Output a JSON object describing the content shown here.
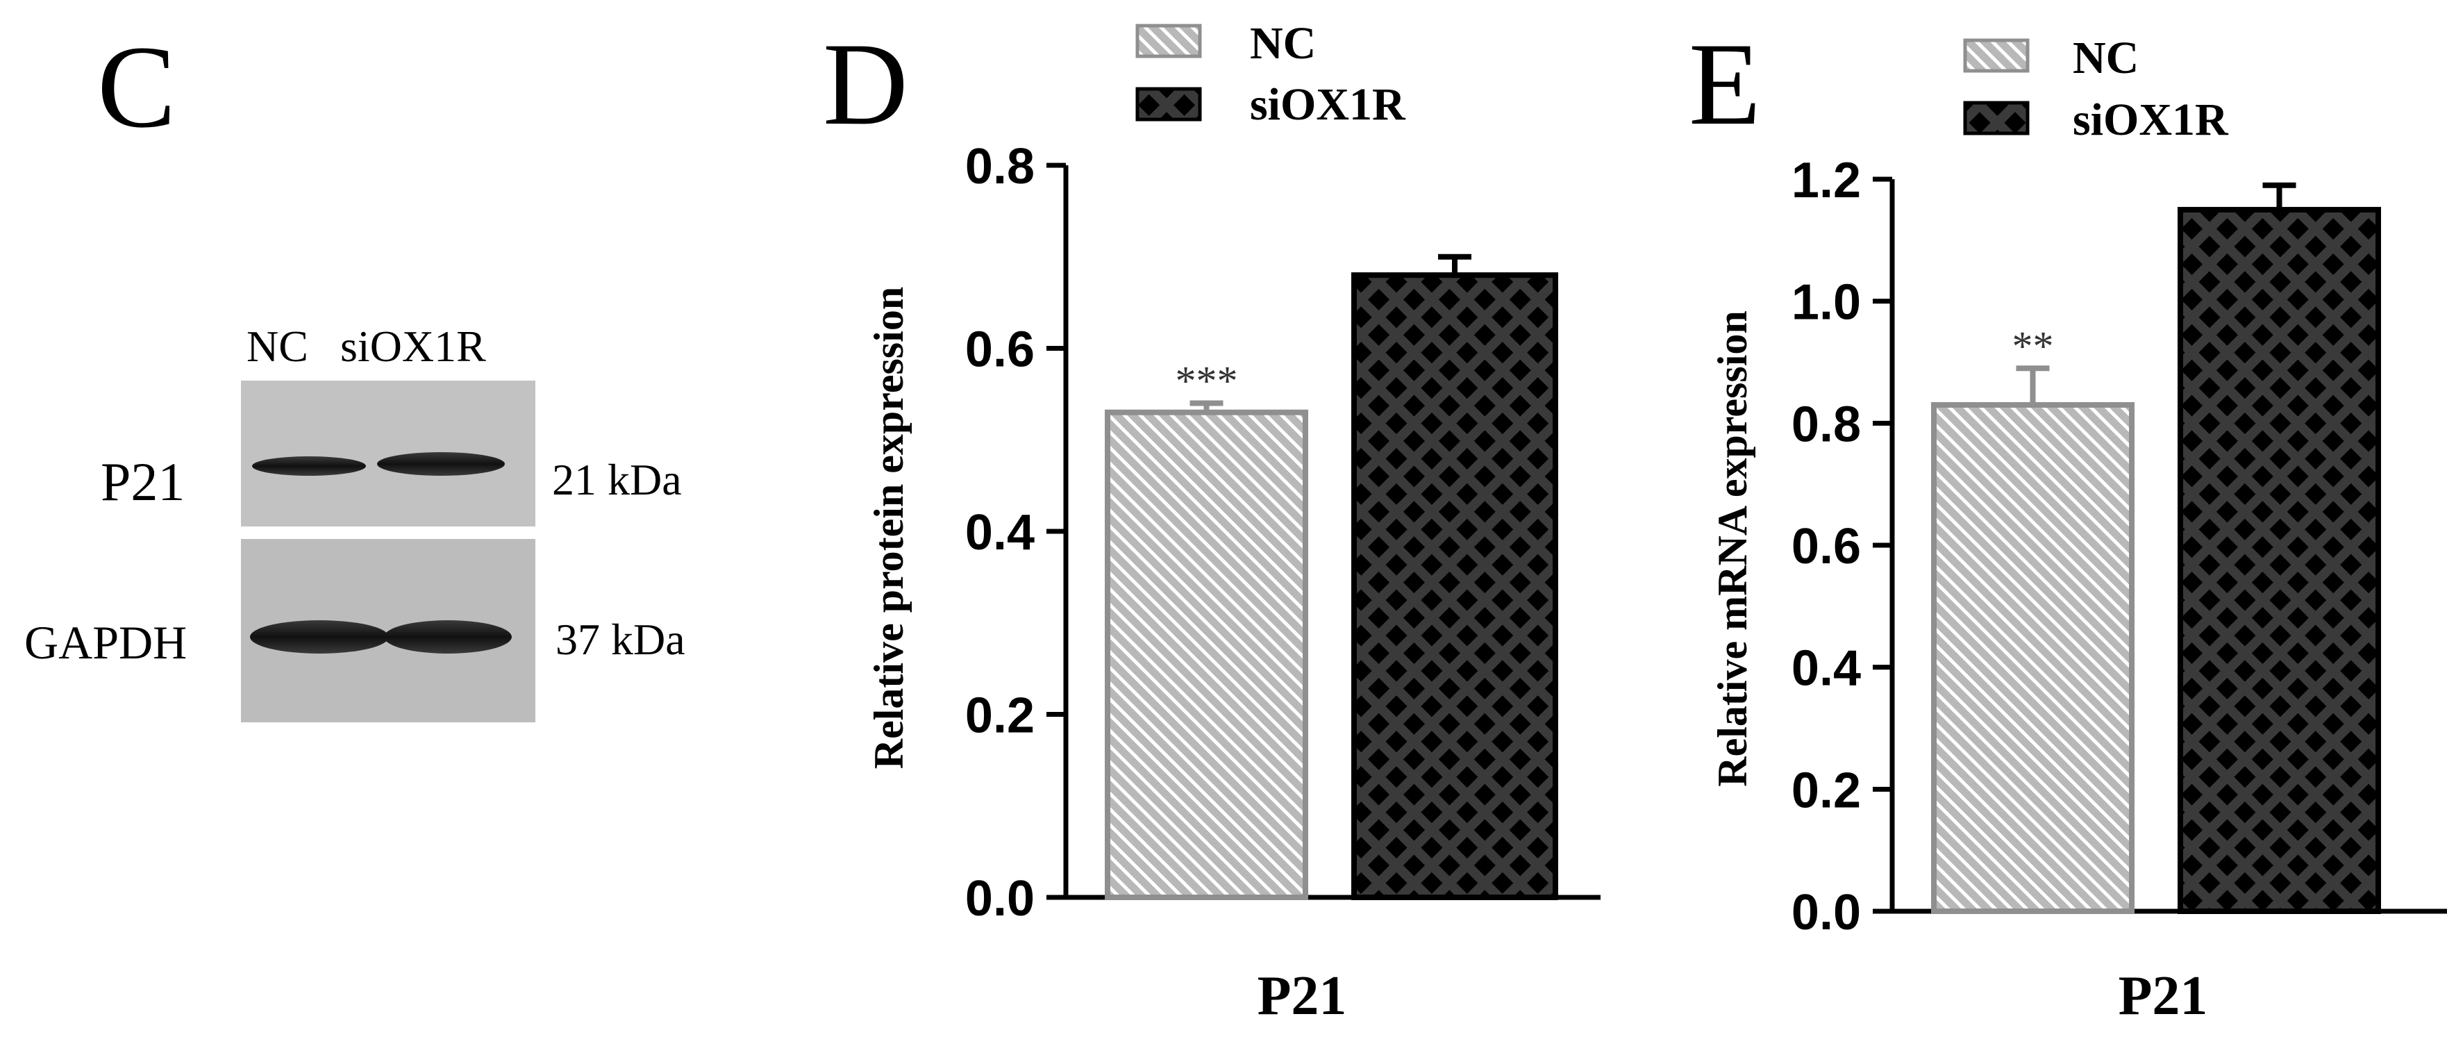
{
  "colors": {
    "nc_fill": "#b8b8b8",
    "nc_stroke": "#8f8f8f",
    "nc_hatch": "#ffffff",
    "si_fill": "#2a2a2a",
    "si_dot": "#000000",
    "axis": "#000000",
    "blot_bg": "#bdbdbd"
  },
  "panel_c": {
    "letter": "C",
    "lane_labels": [
      "NC",
      "siOX1R"
    ],
    "rows": [
      {
        "protein": "P21",
        "size": "21 kDa"
      },
      {
        "protein": "GAPDH",
        "size": "37 kDa"
      }
    ]
  },
  "chart_data": [
    {
      "panel": "D",
      "type": "bar",
      "categories": [
        "P21"
      ],
      "series": [
        {
          "name": "NC",
          "values": [
            0.53
          ],
          "error": [
            0.01
          ],
          "annotation": "***"
        },
        {
          "name": "siOX1R",
          "values": [
            0.68
          ],
          "error": [
            0.02
          ]
        }
      ],
      "xlabel": "P21",
      "ylabel": "Relative protein expression",
      "ylim": [
        0,
        0.8
      ],
      "yticks": [
        "0.0",
        "0.2",
        "0.4",
        "0.6",
        "0.8"
      ],
      "legend": "top"
    },
    {
      "panel": "E",
      "type": "bar",
      "categories": [
        "P21"
      ],
      "series": [
        {
          "name": "NC",
          "values": [
            0.83
          ],
          "error": [
            0.06
          ],
          "annotation": "**"
        },
        {
          "name": "siOX1R",
          "values": [
            1.15
          ],
          "error": [
            0.04
          ]
        }
      ],
      "xlabel": "P21",
      "ylabel": "Relative mRNA expression",
      "ylim": [
        0,
        1.2
      ],
      "yticks": [
        "0.0",
        "0.2",
        "0.4",
        "0.6",
        "0.8",
        "1.0",
        "1.2"
      ],
      "legend": "top"
    }
  ]
}
